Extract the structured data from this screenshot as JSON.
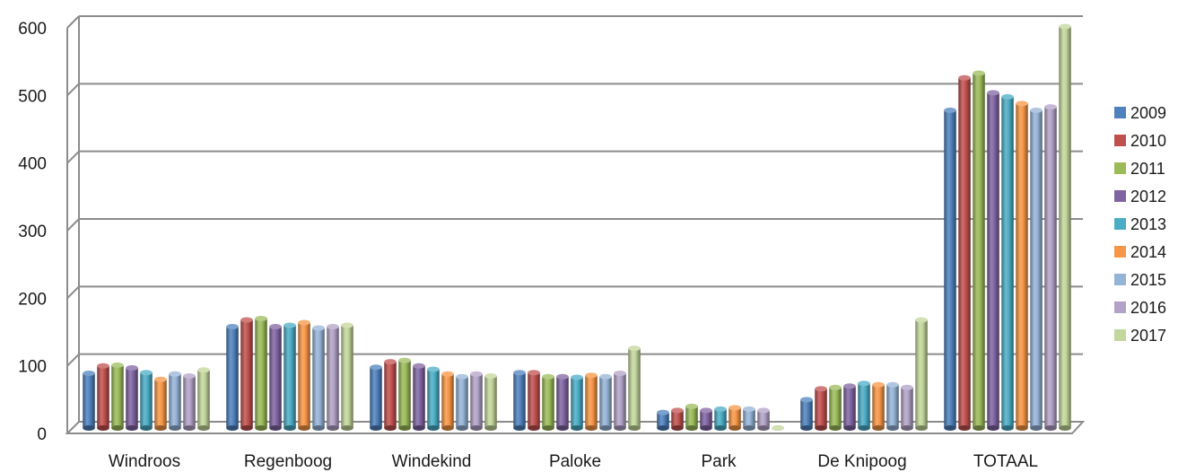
{
  "chart_data": {
    "type": "bar",
    "title": "",
    "xlabel": "",
    "ylabel": "",
    "ylim": [
      0,
      600
    ],
    "yticks": [
      0,
      100,
      200,
      300,
      400,
      500,
      600
    ],
    "grid": true,
    "legend_position": "right",
    "style": "3d-clustered-cylinder",
    "categories": [
      "Windroos",
      "Regenboog",
      "Windekind",
      "Paloke",
      "Park",
      "De Knipoog",
      "TOTAAL"
    ],
    "series": [
      {
        "name": "2009",
        "color": "#4F81BD",
        "values": [
          81,
          150,
          90,
          82,
          23,
          42,
          470
        ]
      },
      {
        "name": "2010",
        "color": "#C0504D",
        "values": [
          92,
          160,
          98,
          82,
          26,
          58,
          518
        ]
      },
      {
        "name": "2011",
        "color": "#9BBB59",
        "values": [
          93,
          162,
          100,
          76,
          32,
          60,
          525
        ]
      },
      {
        "name": "2012",
        "color": "#8064A2",
        "values": [
          89,
          150,
          92,
          76,
          26,
          62,
          496
        ]
      },
      {
        "name": "2013",
        "color": "#4BACC6",
        "values": [
          82,
          152,
          87,
          75,
          28,
          66,
          490
        ]
      },
      {
        "name": "2014",
        "color": "#F79646",
        "values": [
          72,
          156,
          80,
          78,
          30,
          64,
          480
        ]
      },
      {
        "name": "2015",
        "color": "#95B3D7",
        "values": [
          80,
          148,
          76,
          76,
          28,
          64,
          470
        ]
      },
      {
        "name": "2016",
        "color": "#B2A2C7",
        "values": [
          77,
          150,
          80,
          81,
          26,
          60,
          475
        ]
      },
      {
        "name": "2017",
        "color": "#C3D69B",
        "values": [
          86,
          152,
          77,
          118,
          0,
          160,
          594
        ]
      }
    ]
  }
}
